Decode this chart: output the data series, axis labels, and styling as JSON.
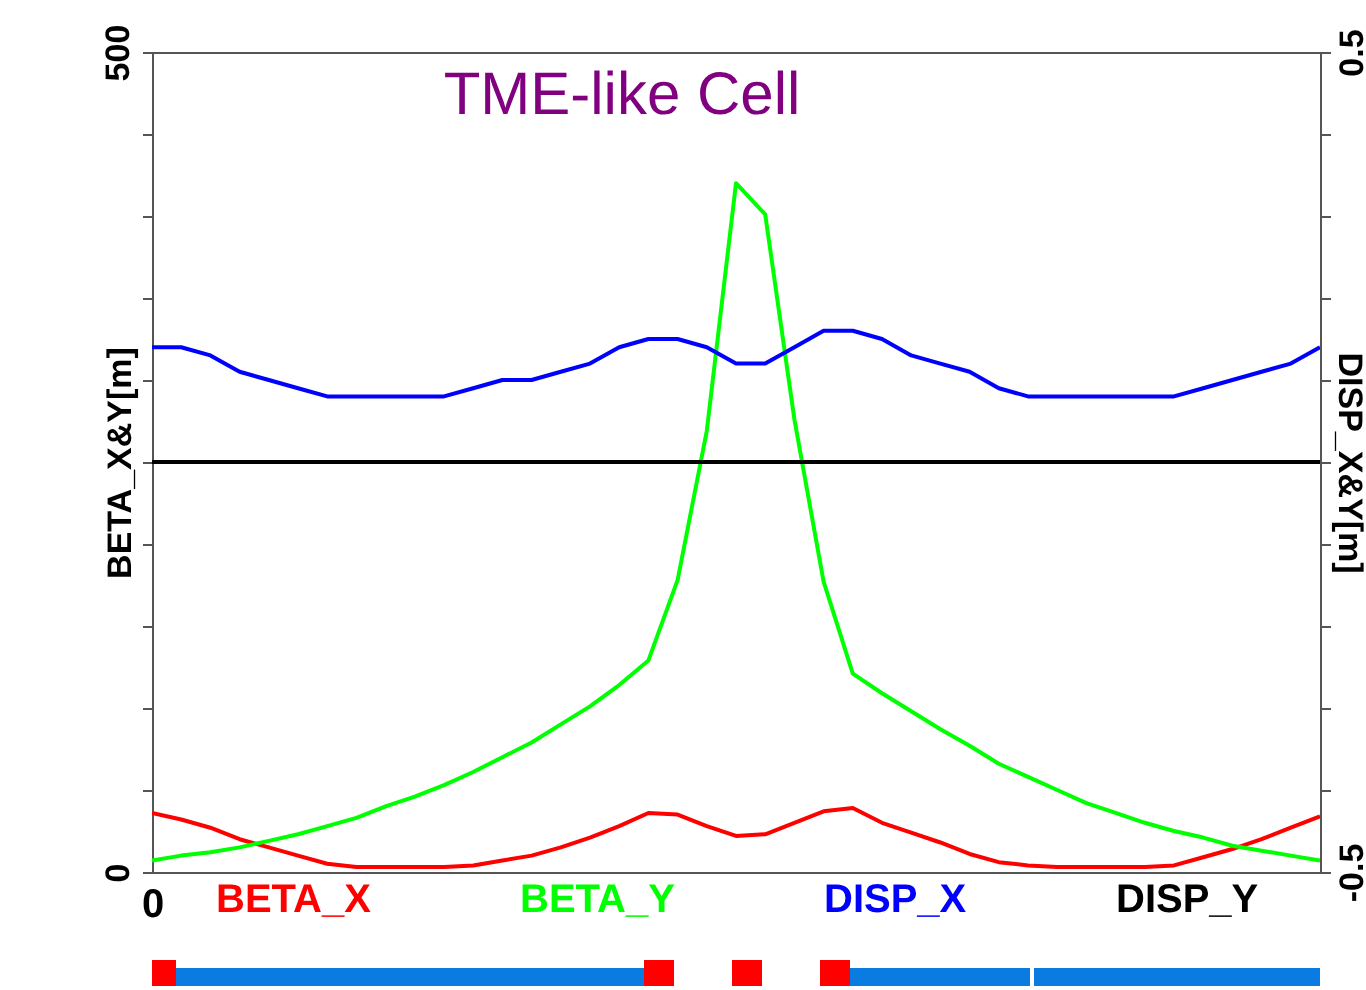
{
  "chart_data": {
    "type": "line",
    "title": "TME-like Cell",
    "ylabel": "BETA_X&Y[m]",
    "y2label": "DISP_X&Y[m]",
    "categories": [
      "0",
      null,
      null,
      null,
      null,
      null,
      null,
      null,
      null,
      null,
      null,
      null,
      null,
      null,
      null,
      null,
      null,
      null,
      null,
      null,
      null,
      null,
      null,
      null,
      null,
      null,
      null,
      null,
      null,
      null,
      null,
      null,
      null,
      null,
      null,
      null,
      null,
      null,
      null,
      null,
      null
    ],
    "ylim": [
      0,
      500
    ],
    "yticks": [
      0,
      {
        "value": 50,
        "label": null
      },
      {
        "value": 100,
        "label": null
      },
      {
        "value": 150,
        "label": null
      },
      {
        "value": 200,
        "label": null
      },
      {
        "value": 250,
        "label": null
      },
      {
        "value": 300,
        "label": null
      },
      {
        "value": 350,
        "label": null
      },
      {
        "value": 400,
        "label": null
      },
      {
        "value": 450,
        "label": null
      },
      500
    ],
    "y2lim": [
      -0.5,
      0.5
    ],
    "y2ticks": [
      -0.5,
      {
        "value": -0.4,
        "label": null
      },
      {
        "value": -0.3,
        "label": null
      },
      {
        "value": -0.2,
        "label": null
      },
      {
        "value": -0.1,
        "label": null
      },
      {
        "value": 0,
        "label": null
      },
      {
        "value": 0.1,
        "label": null
      },
      {
        "value": 0.2,
        "label": null
      },
      {
        "value": 0.3,
        "label": null
      },
      {
        "value": 0.4,
        "label": null
      },
      0.5
    ],
    "legend": "bottom",
    "grid": false,
    "series": [
      {
        "name": "BETA_X",
        "color": "#ff0000",
        "values": [
          36,
          32,
          27,
          20,
          15,
          10,
          5,
          3,
          3,
          3,
          3,
          4,
          7,
          10,
          15,
          21,
          28,
          36,
          35,
          28,
          22,
          23,
          30,
          37,
          39,
          30,
          24,
          18,
          11,
          6,
          4,
          3,
          3,
          3,
          3,
          4,
          9,
          14,
          20,
          27,
          34
        ]
      },
      {
        "name": "BETA_Y",
        "color": "#00ff00",
        "values": [
          7,
          10,
          12,
          15,
          19,
          23,
          28,
          33,
          40,
          46,
          53,
          61,
          70,
          79,
          90,
          101,
          114,
          129,
          178,
          269,
          420,
          401,
          276,
          177,
          121,
          109,
          98,
          87,
          77,
          66,
          58,
          50,
          42,
          36,
          30,
          25,
          21,
          16,
          13,
          10,
          7
        ]
      },
      {
        "name": "DISP_X",
        "color": "#0000ff",
        "axis": "y2",
        "values": [
          0.14,
          0.14,
          0.13,
          0.11,
          0.1,
          0.09,
          0.08,
          0.08,
          0.08,
          0.08,
          0.08,
          0.09,
          0.1,
          0.1,
          0.11,
          0.12,
          0.14,
          0.15,
          0.15,
          0.14,
          0.12,
          0.12,
          0.14,
          0.16,
          0.16,
          0.15,
          0.13,
          0.12,
          0.11,
          0.09,
          0.08,
          0.08,
          0.08,
          0.08,
          0.08,
          0.08,
          0.09,
          0.1,
          0.11,
          0.12,
          0.14
        ]
      },
      {
        "name": "DISP_Y",
        "color": "#000000",
        "axis": "y2",
        "values": [
          0,
          0,
          0,
          0,
          0,
          0,
          0,
          0,
          0,
          0,
          0,
          0,
          0,
          0,
          0,
          0,
          0,
          0,
          0,
          0,
          0,
          0,
          0,
          0,
          0,
          0,
          0,
          0,
          0,
          0,
          0,
          0,
          0,
          0,
          0,
          0,
          0,
          0,
          0,
          0,
          0
        ]
      }
    ]
  }
}
